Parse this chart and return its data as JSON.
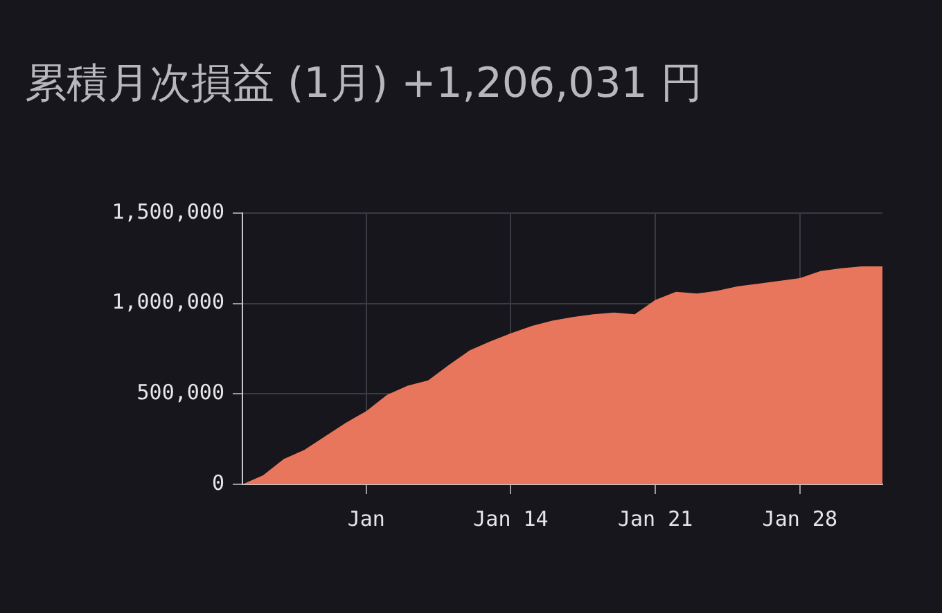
{
  "chart_data": {
    "type": "area",
    "title": "累積月次損益 (1月) +1,206,031 円",
    "x": [
      "--01-01",
      "--01-02",
      "--01-03",
      "--01-04",
      "--01-05",
      "--01-06",
      "--01-07",
      "--01-08",
      "--01-09",
      "--01-10",
      "--01-11",
      "--01-12",
      "--01-13",
      "--01-14",
      "--01-15",
      "--01-16",
      "--01-17",
      "--01-18",
      "--01-19",
      "--01-20",
      "--01-21",
      "--01-22",
      "--01-23",
      "--01-24",
      "--01-25",
      "--01-26",
      "--01-27",
      "--01-28",
      "--01-29",
      "--01-30",
      "--01-31",
      "--02-01"
    ],
    "series": [
      {
        "color": "#e8765c",
        "values": [
          0,
          50000,
          140000,
          190000,
          265000,
          340000,
          405000,
          495000,
          545000,
          575000,
          660000,
          740000,
          790000,
          835000,
          875000,
          905000,
          925000,
          940000,
          950000,
          940000,
          1020000,
          1065000,
          1055000,
          1070000,
          1095000,
          1110000,
          1125000,
          1140000,
          1180000,
          1195000,
          1205000,
          1205000
        ]
      }
    ],
    "xlim": [
      "--01-01",
      "--02-01"
    ],
    "xticks": [
      {
        "value": "--01-07",
        "label": "Jan"
      },
      {
        "value": "--01-14",
        "label": "Jan 14"
      },
      {
        "value": "--01-21",
        "label": "Jan 21"
      },
      {
        "value": "--01-28",
        "label": "Jan 28"
      }
    ],
    "ylim": [
      0,
      1500000
    ],
    "yticks": [
      0,
      {
        "value": 500000,
        "label": "500,000"
      },
      {
        "value": 1000000,
        "label": "1,000,000"
      },
      {
        "value": 1500000,
        "label": "1,500,000"
      }
    ],
    "grid": true,
    "legend": false
  }
}
